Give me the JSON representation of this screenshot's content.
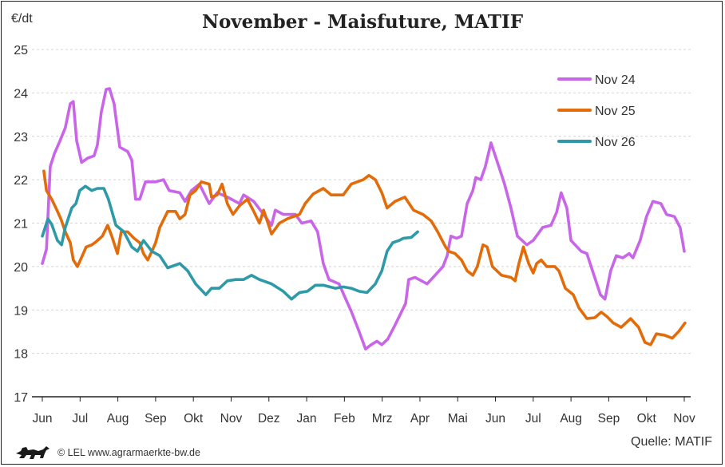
{
  "chart_data": {
    "type": "line",
    "title": "November - Maisfuture, MATIF",
    "ylabel": "€/dt",
    "xlabel": "",
    "ylim": [
      17,
      25
    ],
    "yticks": [
      17,
      18,
      19,
      20,
      21,
      22,
      23,
      24,
      25
    ],
    "x_ticks": [
      "Jun",
      "Jul",
      "Aug",
      "Sep",
      "Okt",
      "Nov",
      "Dez",
      "Jan",
      "Feb",
      "Mrz",
      "Apr",
      "Mai",
      "Jun",
      "Jul",
      "Aug",
      "Sep",
      "Okt",
      "Nov"
    ],
    "x_unit_note": "x = position in months along the tick sequence (0 = Jun, 17 = Nov)",
    "grid": "horizontal dashed",
    "legend": "top-right",
    "source": "Quelle: MATIF",
    "series": [
      {
        "name": "Nov 24",
        "color": "#c965e8",
        "points": [
          [
            0,
            20.07
          ],
          [
            0.11,
            20.4
          ],
          [
            0.21,
            22.3
          ],
          [
            0.32,
            22.6
          ],
          [
            0.47,
            22.9
          ],
          [
            0.61,
            23.2
          ],
          [
            0.74,
            23.75
          ],
          [
            0.82,
            23.8
          ],
          [
            0.91,
            22.9
          ],
          [
            1.04,
            22.4
          ],
          [
            1.21,
            22.5
          ],
          [
            1.37,
            22.55
          ],
          [
            1.46,
            22.8
          ],
          [
            1.56,
            23.55
          ],
          [
            1.69,
            24.08
          ],
          [
            1.78,
            24.1
          ],
          [
            1.9,
            23.75
          ],
          [
            2.05,
            22.75
          ],
          [
            2.26,
            22.65
          ],
          [
            2.37,
            22.45
          ],
          [
            2.47,
            21.55
          ],
          [
            2.58,
            21.55
          ],
          [
            2.73,
            21.95
          ],
          [
            3.0,
            21.95
          ],
          [
            3.21,
            22.0
          ],
          [
            3.36,
            21.75
          ],
          [
            3.64,
            21.7
          ],
          [
            3.78,
            21.5
          ],
          [
            3.95,
            21.75
          ],
          [
            4.16,
            21.9
          ],
          [
            4.42,
            21.45
          ],
          [
            4.63,
            21.7
          ],
          [
            4.9,
            21.6
          ],
          [
            5.22,
            21.45
          ],
          [
            5.33,
            21.65
          ],
          [
            5.6,
            21.5
          ],
          [
            5.86,
            21.2
          ],
          [
            6.07,
            20.95
          ],
          [
            6.17,
            21.3
          ],
          [
            6.38,
            21.2
          ],
          [
            6.7,
            21.2
          ],
          [
            6.87,
            21.0
          ],
          [
            7.12,
            21.05
          ],
          [
            7.29,
            20.8
          ],
          [
            7.44,
            20.07
          ],
          [
            7.59,
            19.7
          ],
          [
            7.86,
            19.6
          ],
          [
            8.01,
            19.3
          ],
          [
            8.18,
            18.97
          ],
          [
            8.39,
            18.5
          ],
          [
            8.56,
            18.1
          ],
          [
            8.71,
            18.2
          ],
          [
            8.86,
            18.28
          ],
          [
            8.99,
            18.2
          ],
          [
            9.15,
            18.33
          ],
          [
            9.34,
            18.65
          ],
          [
            9.62,
            19.15
          ],
          [
            9.7,
            19.7
          ],
          [
            9.87,
            19.75
          ],
          [
            10.19,
            19.6
          ],
          [
            10.4,
            19.8
          ],
          [
            10.61,
            20.0
          ],
          [
            10.72,
            20.25
          ],
          [
            10.82,
            20.7
          ],
          [
            10.97,
            20.65
          ],
          [
            11.1,
            20.7
          ],
          [
            11.25,
            21.45
          ],
          [
            11.4,
            21.75
          ],
          [
            11.48,
            22.05
          ],
          [
            11.61,
            22.0
          ],
          [
            11.73,
            22.3
          ],
          [
            11.88,
            22.85
          ],
          [
            12.09,
            22.3
          ],
          [
            12.24,
            21.9
          ],
          [
            12.41,
            21.35
          ],
          [
            12.58,
            20.7
          ],
          [
            12.83,
            20.5
          ],
          [
            13.0,
            20.6
          ],
          [
            13.25,
            20.9
          ],
          [
            13.47,
            20.95
          ],
          [
            13.62,
            21.25
          ],
          [
            13.74,
            21.7
          ],
          [
            13.89,
            21.35
          ],
          [
            14.0,
            20.6
          ],
          [
            14.27,
            20.35
          ],
          [
            14.42,
            20.3
          ],
          [
            14.57,
            19.9
          ],
          [
            14.78,
            19.35
          ],
          [
            14.9,
            19.25
          ],
          [
            15.05,
            19.9
          ],
          [
            15.2,
            20.25
          ],
          [
            15.37,
            20.2
          ],
          [
            15.54,
            20.3
          ],
          [
            15.64,
            20.2
          ],
          [
            15.83,
            20.6
          ],
          [
            16.0,
            21.15
          ],
          [
            16.17,
            21.5
          ],
          [
            16.38,
            21.45
          ],
          [
            16.53,
            21.2
          ],
          [
            16.74,
            21.15
          ],
          [
            16.89,
            20.9
          ],
          [
            17.0,
            20.35
          ]
        ]
      },
      {
        "name": "Nov 25",
        "color": "#e36c0a",
        "points": [
          [
            0.04,
            22.2
          ],
          [
            0.11,
            21.75
          ],
          [
            0.25,
            21.55
          ],
          [
            0.36,
            21.35
          ],
          [
            0.49,
            21.1
          ],
          [
            0.61,
            20.8
          ],
          [
            0.74,
            20.55
          ],
          [
            0.82,
            20.15
          ],
          [
            0.93,
            20.0
          ],
          [
            1.06,
            20.25
          ],
          [
            1.16,
            20.45
          ],
          [
            1.31,
            20.5
          ],
          [
            1.42,
            20.57
          ],
          [
            1.59,
            20.7
          ],
          [
            1.73,
            20.95
          ],
          [
            1.84,
            20.7
          ],
          [
            1.99,
            20.3
          ],
          [
            2.09,
            20.8
          ],
          [
            2.26,
            20.8
          ],
          [
            2.43,
            20.65
          ],
          [
            2.58,
            20.55
          ],
          [
            2.68,
            20.3
          ],
          [
            2.79,
            20.15
          ],
          [
            2.9,
            20.35
          ],
          [
            3.0,
            20.55
          ],
          [
            3.11,
            20.9
          ],
          [
            3.32,
            21.27
          ],
          [
            3.53,
            21.27
          ],
          [
            3.64,
            21.1
          ],
          [
            3.78,
            21.2
          ],
          [
            3.91,
            21.65
          ],
          [
            4.06,
            21.75
          ],
          [
            4.21,
            21.95
          ],
          [
            4.42,
            21.9
          ],
          [
            4.48,
            21.6
          ],
          [
            4.63,
            21.65
          ],
          [
            4.76,
            21.9
          ],
          [
            4.9,
            21.45
          ],
          [
            5.05,
            21.2
          ],
          [
            5.22,
            21.4
          ],
          [
            5.43,
            21.55
          ],
          [
            5.6,
            21.27
          ],
          [
            5.75,
            21.0
          ],
          [
            5.86,
            21.3
          ],
          [
            6.07,
            20.75
          ],
          [
            6.28,
            21.0
          ],
          [
            6.49,
            21.1
          ],
          [
            6.81,
            21.2
          ],
          [
            6.96,
            21.45
          ],
          [
            7.17,
            21.67
          ],
          [
            7.44,
            21.8
          ],
          [
            7.65,
            21.65
          ],
          [
            7.97,
            21.65
          ],
          [
            8.18,
            21.9
          ],
          [
            8.5,
            22.0
          ],
          [
            8.65,
            22.1
          ],
          [
            8.82,
            22.0
          ],
          [
            8.99,
            21.7
          ],
          [
            9.13,
            21.35
          ],
          [
            9.34,
            21.5
          ],
          [
            9.6,
            21.6
          ],
          [
            9.83,
            21.3
          ],
          [
            10.08,
            21.2
          ],
          [
            10.3,
            21.05
          ],
          [
            10.47,
            20.8
          ],
          [
            10.68,
            20.45
          ],
          [
            10.76,
            20.35
          ],
          [
            10.93,
            20.3
          ],
          [
            11.1,
            20.15
          ],
          [
            11.25,
            19.9
          ],
          [
            11.4,
            19.8
          ],
          [
            11.52,
            20.0
          ],
          [
            11.67,
            20.5
          ],
          [
            11.78,
            20.45
          ],
          [
            11.92,
            20.0
          ],
          [
            12.16,
            19.8
          ],
          [
            12.41,
            19.75
          ],
          [
            12.52,
            19.67
          ],
          [
            12.62,
            20.07
          ],
          [
            12.74,
            20.45
          ],
          [
            12.88,
            20.07
          ],
          [
            13.0,
            19.85
          ],
          [
            13.09,
            20.07
          ],
          [
            13.21,
            20.15
          ],
          [
            13.36,
            20.0
          ],
          [
            13.57,
            20.0
          ],
          [
            13.68,
            19.9
          ],
          [
            13.85,
            19.5
          ],
          [
            14.06,
            19.35
          ],
          [
            14.21,
            19.05
          ],
          [
            14.42,
            18.8
          ],
          [
            14.63,
            18.82
          ],
          [
            14.8,
            18.95
          ],
          [
            14.95,
            18.85
          ],
          [
            15.12,
            18.7
          ],
          [
            15.33,
            18.6
          ],
          [
            15.58,
            18.8
          ],
          [
            15.79,
            18.6
          ],
          [
            15.96,
            18.25
          ],
          [
            16.11,
            18.2
          ],
          [
            16.26,
            18.45
          ],
          [
            16.47,
            18.42
          ],
          [
            16.68,
            18.35
          ],
          [
            16.85,
            18.5
          ],
          [
            17.02,
            18.7
          ]
        ]
      },
      {
        "name": "Nov 26",
        "color": "#2e9aa8",
        "points": [
          [
            0,
            20.7
          ],
          [
            0.15,
            21.1
          ],
          [
            0.25,
            20.97
          ],
          [
            0.4,
            20.6
          ],
          [
            0.51,
            20.5
          ],
          [
            0.61,
            20.9
          ],
          [
            0.78,
            21.35
          ],
          [
            0.89,
            21.45
          ],
          [
            0.99,
            21.75
          ],
          [
            1.14,
            21.85
          ],
          [
            1.31,
            21.75
          ],
          [
            1.46,
            21.8
          ],
          [
            1.63,
            21.8
          ],
          [
            1.75,
            21.55
          ],
          [
            1.95,
            20.95
          ],
          [
            2.16,
            20.8
          ],
          [
            2.37,
            20.45
          ],
          [
            2.52,
            20.35
          ],
          [
            2.68,
            20.6
          ],
          [
            2.9,
            20.35
          ],
          [
            3.11,
            20.25
          ],
          [
            3.32,
            19.97
          ],
          [
            3.64,
            20.07
          ],
          [
            3.85,
            19.9
          ],
          [
            4.06,
            19.6
          ],
          [
            4.33,
            19.35
          ],
          [
            4.48,
            19.5
          ],
          [
            4.69,
            19.5
          ],
          [
            4.9,
            19.67
          ],
          [
            5.12,
            19.7
          ],
          [
            5.33,
            19.7
          ],
          [
            5.54,
            19.8
          ],
          [
            5.75,
            19.7
          ],
          [
            6.07,
            19.6
          ],
          [
            6.38,
            19.43
          ],
          [
            6.6,
            19.25
          ],
          [
            6.81,
            19.4
          ],
          [
            7.02,
            19.43
          ],
          [
            7.23,
            19.57
          ],
          [
            7.44,
            19.57
          ],
          [
            7.76,
            19.5
          ],
          [
            7.97,
            19.53
          ],
          [
            8.18,
            19.5
          ],
          [
            8.39,
            19.43
          ],
          [
            8.6,
            19.4
          ],
          [
            8.82,
            19.6
          ],
          [
            8.99,
            19.9
          ],
          [
            9.13,
            20.35
          ],
          [
            9.28,
            20.55
          ],
          [
            9.45,
            20.6
          ],
          [
            9.56,
            20.65
          ],
          [
            9.77,
            20.67
          ],
          [
            9.94,
            20.8
          ]
        ]
      }
    ]
  },
  "footer": {
    "copyright": "© LEL www.agrarmaerkte-bw.de",
    "logo": "Baden-Württemberg lion"
  }
}
